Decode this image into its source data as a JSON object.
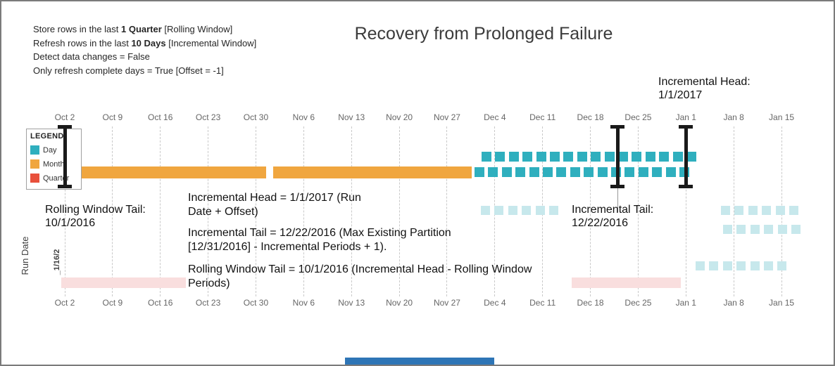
{
  "title": "Recovery from Prolonged Failure",
  "config_panel": {
    "lines": [
      {
        "pre": "Store rows in the last ",
        "bold": "1 Quarter",
        "post": " [Rolling Window]"
      },
      {
        "pre": "Refresh rows in the last ",
        "bold": "10 Days",
        "post": " [Incremental Window]"
      },
      {
        "pre": "Detect data changes = False",
        "bold": "",
        "post": ""
      },
      {
        "pre": "Only refresh complete days = True [Offset = -1]",
        "bold": "",
        "post": ""
      }
    ]
  },
  "legend": {
    "title": "LEGEND",
    "items": [
      {
        "label": "Day",
        "color": "#2FAFBE"
      },
      {
        "label": "Month",
        "color": "#F0A63F"
      },
      {
        "label": "Quarter",
        "color": "#E8503C"
      }
    ]
  },
  "axes": {
    "x_ticks": [
      "Oct 2",
      "Oct 9",
      "Oct 16",
      "Oct 23",
      "Oct 30",
      "Nov 6",
      "Nov 13",
      "Nov 20",
      "Nov 27",
      "Dec 4",
      "Dec 11",
      "Dec 18",
      "Dec 25",
      "Jan 1",
      "Jan 8",
      "Jan 15"
    ],
    "y_label": "Run Date",
    "run_row_label": "_1/16/2"
  },
  "callouts": {
    "incremental_head": {
      "line1": "Incremental Head:",
      "line2": "1/1/2017"
    },
    "rolling_window_tail": {
      "line1": "Rolling Window Tail:",
      "line2": "10/1/2016"
    },
    "incremental_tail": {
      "line1": "Incremental Tail:",
      "line2": "12/22/2016"
    }
  },
  "notes": {
    "head": "Incremental Head = 1/1/2017 (Run Date + Offset)",
    "tail": "Incremental Tail = 12/22/2016 (Max Existing Partition [12/31/2016] - Incremental Periods + 1).",
    "rolling": "Rolling Window Tail = 10/1/2016 (Incremental Head - Rolling Window Periods)"
  },
  "chart_data": {
    "type": "timeline",
    "title": "Recovery from Prolonged Failure",
    "x_ticks": [
      "Oct 2",
      "Oct 9",
      "Oct 16",
      "Oct 23",
      "Oct 30",
      "Nov 6",
      "Nov 13",
      "Nov 20",
      "Nov 27",
      "Dec 4",
      "Dec 11",
      "Dec 18",
      "Dec 25",
      "Jan 1",
      "Jan 8",
      "Jan 15"
    ],
    "run_date_row": "1/16/2017",
    "series": [
      {
        "name": "Month",
        "color": "#F0A63F",
        "bars": [
          {
            "label": "Oct 2016",
            "start": "Oct 2",
            "end": "Oct 31"
          },
          {
            "label": "Nov 2016",
            "start": "Nov 1",
            "end": "Nov 30"
          }
        ]
      },
      {
        "name": "Day",
        "color": "#2FAFBE",
        "range_start": "12/2/2016",
        "range_end": "1/1/2017",
        "upper_count": 16,
        "lower_count": 16
      }
    ],
    "markers": [
      {
        "name": "Rolling Window Tail",
        "date": "10/1/2016",
        "tick_pos": 0
      },
      {
        "name": "Incremental Tail",
        "date": "12/22/2016",
        "tick_pos": 11.57
      },
      {
        "name": "Incremental Head",
        "date": "1/1/2017",
        "tick_pos": 13
      }
    ],
    "colors": {
      "day": "#2FAFBE",
      "month": "#F0A63F",
      "quarter": "#E8503C",
      "ghost_day": "#C7E8EC",
      "ghost_quarter": "#F9DEDE"
    },
    "legend_position": "left",
    "grid": "dashed-vertical"
  },
  "scrollbar_color": "#2E75B6"
}
